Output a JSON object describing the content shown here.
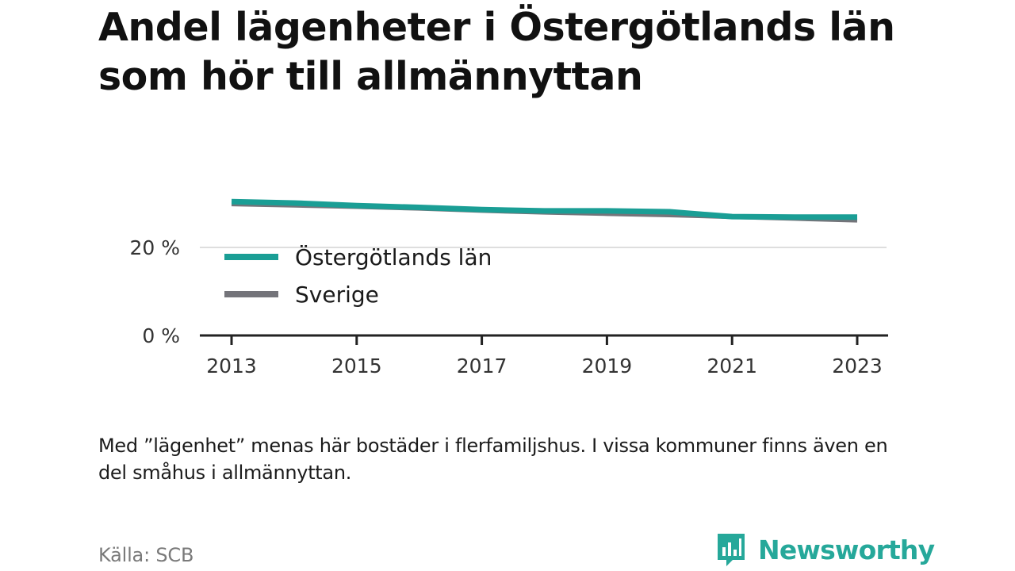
{
  "title": "Andel lägenheter i Östergötlands län som hör till allmännyttan",
  "note": "Med ”lägenhet” menas här bostäder i flerfamiljshus. I vissa kommuner finns även en del småhus i allmännyttan.",
  "source": "Källa: SCB",
  "brand": {
    "name": "Newsworthy",
    "logo_icon": "bar-chart-bubble-icon"
  },
  "colors": {
    "accent": "#1a9e95",
    "secondary": "#74747a",
    "brand": "#26a89a"
  },
  "chart_data": {
    "type": "line",
    "x": [
      2013,
      2014,
      2015,
      2016,
      2017,
      2018,
      2019,
      2020,
      2021,
      2022,
      2023
    ],
    "xticks": [
      "2013",
      "2015",
      "2017",
      "2019",
      "2021",
      "2023"
    ],
    "yticks": [
      "0 %",
      "20 %"
    ],
    "ylim": [
      0,
      35
    ],
    "grid": true,
    "legend": "inside-left",
    "series": [
      {
        "name": "Östergötlands län",
        "color": "#1a9e95",
        "values": [
          30.4,
          30.1,
          29.5,
          29.1,
          28.6,
          28.3,
          28.3,
          28.1,
          27.0,
          26.9,
          26.9
        ]
      },
      {
        "name": "Sverige",
        "color": "#74747a",
        "values": [
          29.8,
          29.5,
          29.2,
          28.8,
          28.3,
          27.9,
          27.6,
          27.3,
          26.9,
          26.5,
          26.1
        ]
      }
    ]
  }
}
